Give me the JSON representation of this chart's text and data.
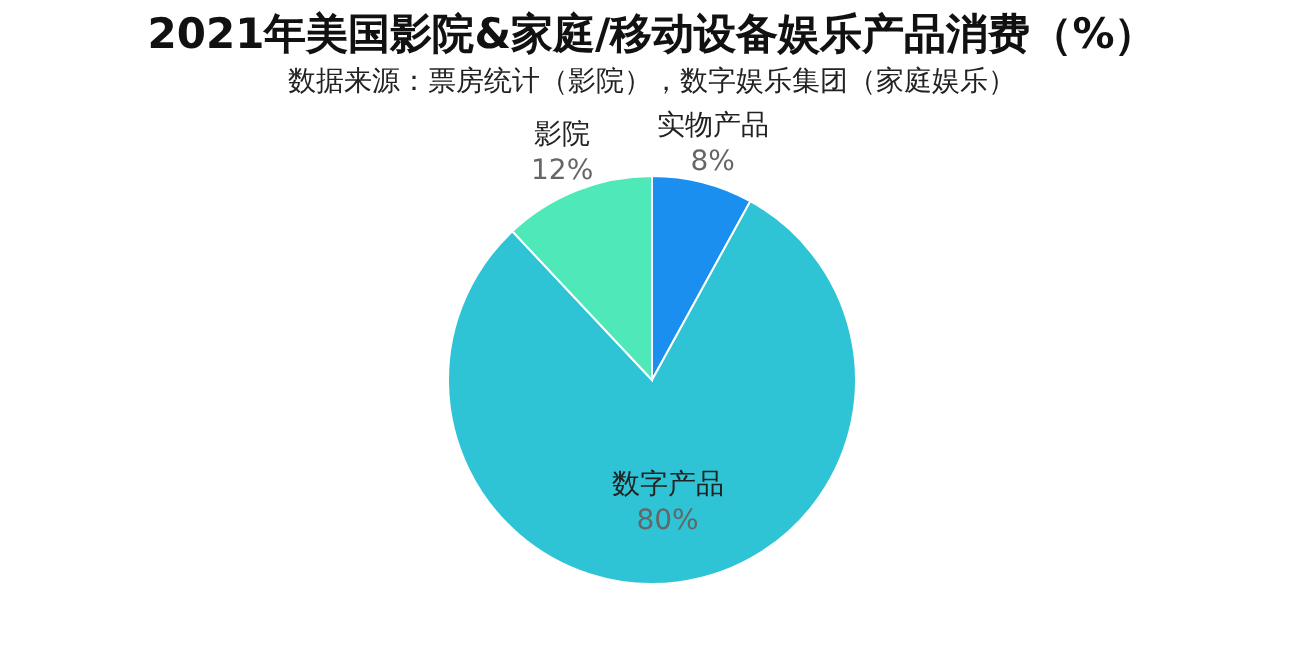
{
  "chart_data": {
    "type": "pie",
    "title": "2021年美国影院&家庭/移动设备娱乐产品消费（%）",
    "subtitle": "数据来源：票房统计（影院），数字娱乐集团（家庭娱乐）",
    "categories": [
      "实物产品",
      "数字产品",
      "影院"
    ],
    "values": [
      8,
      80,
      12
    ],
    "colors": [
      "#1a8ff0",
      "#2ec4d6",
      "#4fe8b8"
    ],
    "value_labels": [
      "8%",
      "80%",
      "12%"
    ]
  }
}
